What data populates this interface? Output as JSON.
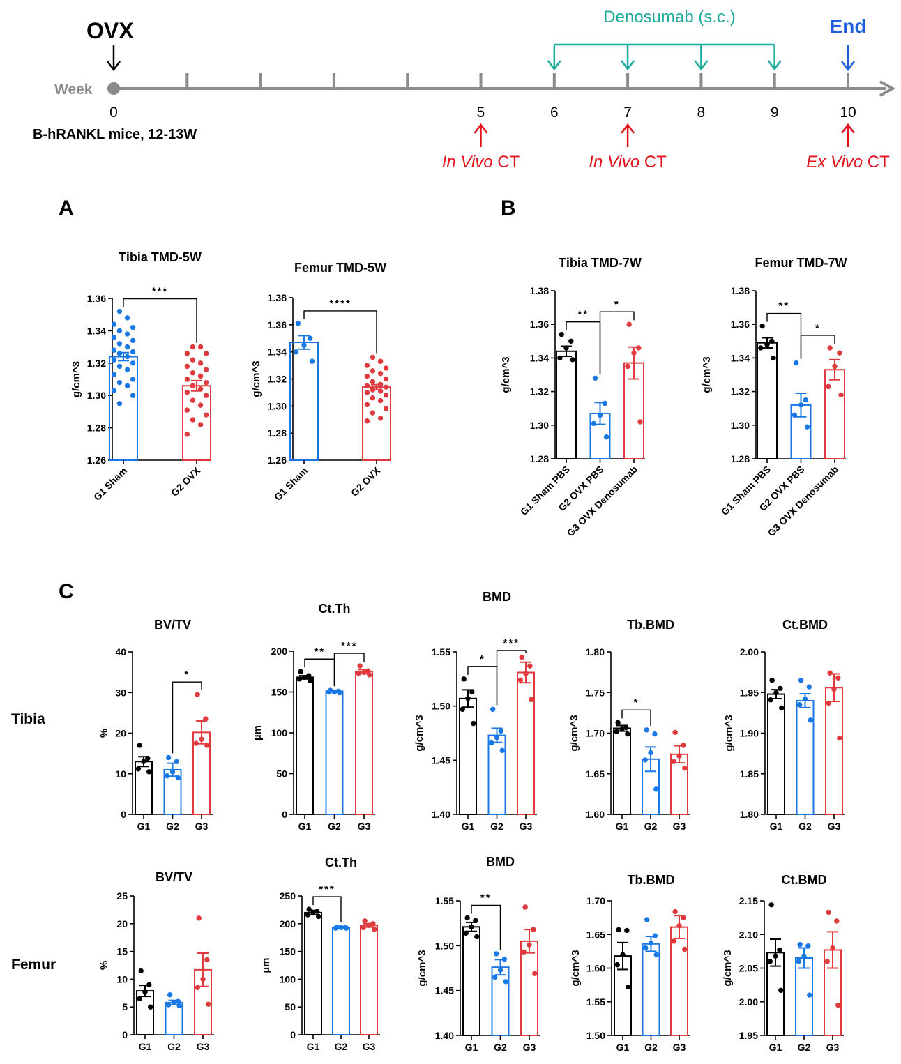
{
  "timeline": {
    "week_label": "Week",
    "ovx_label": "OVX",
    "end_label": "End",
    "treatment_label": "Denosumab (s.c.)",
    "mice_label": "B-hRANKL mice, 12-13W",
    "week_numbers": [
      "0",
      "5",
      "6",
      "7",
      "8",
      "9",
      "10"
    ],
    "ct_events": [
      {
        "week": 5,
        "italic": "In Vivo",
        "text": "CT"
      },
      {
        "week": 7,
        "italic": "In Vivo",
        "text": "CT"
      },
      {
        "week": 10,
        "italic": "Ex Vivo",
        "text": "CT"
      }
    ],
    "treatment_weeks": [
      6,
      7,
      8,
      9
    ],
    "colors": {
      "axis": "#8c8c8c",
      "treatment": "#1aab9b",
      "end": "#1f5fd8",
      "ct": "#e3121b",
      "ovx": "#000000"
    }
  },
  "panel_letters": [
    "A",
    "B",
    "C"
  ],
  "row_labels": [
    "Tibia",
    "Femur"
  ],
  "group_colors": {
    "G1": "#000000",
    "G2": "#1a78e6",
    "G3": "#e03a3e"
  },
  "chart_data": [
    {
      "type": "bar",
      "title": "Tibia TMD-5W",
      "ylabel": "g/cm^3",
      "categories": [
        "G1 Sham",
        "G2 OVX"
      ],
      "category_colors": [
        "#1a78e6",
        "#e03a3e"
      ],
      "values": [
        1.324,
        1.306
      ],
      "sem": [
        0.0025,
        0.0032
      ],
      "ylim": [
        1.26,
        1.36
      ],
      "yticks": [
        "1.26",
        "1.28",
        "1.30",
        "1.32",
        "1.34",
        "1.36"
      ],
      "points": [
        [
          1.352,
          1.348,
          1.344,
          1.342,
          1.34,
          1.338,
          1.336,
          1.334,
          1.332,
          1.33,
          1.328,
          1.327,
          1.326,
          1.324,
          1.322,
          1.32,
          1.318,
          1.316,
          1.313,
          1.31,
          1.308,
          1.306,
          1.303,
          1.3,
          1.295
        ],
        [
          1.33,
          1.33,
          1.326,
          1.326,
          1.322,
          1.32,
          1.318,
          1.316,
          1.314,
          1.312,
          1.31,
          1.308,
          1.306,
          1.304,
          1.302,
          1.3,
          1.297,
          1.294,
          1.291,
          1.288,
          1.285,
          1.282,
          1.276
        ]
      ],
      "significance": [
        {
          "from": 0,
          "to": 1,
          "label": "***"
        }
      ]
    },
    {
      "type": "bar",
      "title": "Femur TMD-5W",
      "ylabel": "g/cm^3",
      "categories": [
        "G1 Sham",
        "G2 OVX"
      ],
      "category_colors": [
        "#1a78e6",
        "#e03a3e"
      ],
      "values": [
        1.347,
        1.314
      ],
      "sem": [
        0.005,
        0.0018
      ],
      "ylim": [
        1.26,
        1.38
      ],
      "yticks": [
        "1.26",
        "1.28",
        "1.30",
        "1.32",
        "1.34",
        "1.36",
        "1.38"
      ],
      "points": [
        [
          1.361,
          1.35,
          1.345,
          1.34,
          1.333
        ],
        [
          1.336,
          1.333,
          1.33,
          1.328,
          1.326,
          1.324,
          1.322,
          1.32,
          1.318,
          1.316,
          1.315,
          1.314,
          1.312,
          1.311,
          1.31,
          1.308,
          1.306,
          1.304,
          1.301,
          1.298,
          1.295,
          1.291,
          1.289
        ]
      ],
      "significance": [
        {
          "from": 0,
          "to": 1,
          "label": "****"
        }
      ]
    },
    {
      "type": "bar",
      "title": "Tibia TMD-7W",
      "ylabel": "g/cm^3",
      "categories": [
        "G1 Sham PBS",
        "G2 OVX PBS",
        "G3 OVX Denosumab"
      ],
      "category_colors": [
        "#000000",
        "#1a78e6",
        "#e03a3e"
      ],
      "values": [
        1.344,
        1.307,
        1.337
      ],
      "sem": [
        0.003,
        0.0065,
        0.0095
      ],
      "ylim": [
        1.28,
        1.38
      ],
      "yticks": [
        "1.28",
        "1.30",
        "1.32",
        "1.34",
        "1.36",
        "1.38"
      ],
      "points": [
        [
          1.354,
          1.35,
          1.346,
          1.34,
          1.339
        ],
        [
          1.328,
          1.313,
          1.306,
          1.301,
          1.293
        ],
        [
          1.36,
          1.346,
          1.343,
          1.335,
          1.302
        ]
      ],
      "significance": [
        {
          "from": 0,
          "to": 1,
          "label": "**"
        },
        {
          "from": 1,
          "to": 2,
          "label": "*"
        }
      ]
    },
    {
      "type": "bar",
      "title": "Femur TMD-7W",
      "ylabel": "g/cm^3",
      "categories": [
        "G1 Sham PBS",
        "G2 OVX PBS",
        "G3 OVX Denosumab"
      ],
      "category_colors": [
        "#000000",
        "#1a78e6",
        "#e03a3e"
      ],
      "values": [
        1.349,
        1.312,
        1.333
      ],
      "sem": [
        0.003,
        0.007,
        0.006
      ],
      "ylim": [
        1.28,
        1.38
      ],
      "yticks": [
        "1.28",
        "1.30",
        "1.32",
        "1.34",
        "1.36",
        "1.38"
      ],
      "points": [
        [
          1.359,
          1.35,
          1.348,
          1.346,
          1.34
        ],
        [
          1.337,
          1.315,
          1.312,
          1.306,
          1.299
        ],
        [
          1.346,
          1.343,
          1.335,
          1.323,
          1.318
        ]
      ],
      "significance": [
        {
          "from": 0,
          "to": 1,
          "label": "**"
        },
        {
          "from": 1,
          "to": 2,
          "label": "*"
        }
      ]
    },
    {
      "type": "bar",
      "title": "BV/TV",
      "ylabel": "%",
      "categories": [
        "G1",
        "G2",
        "G3"
      ],
      "category_colors": [
        "#000000",
        "#1a78e6",
        "#e03a3e"
      ],
      "values": [
        13.0,
        11.0,
        20.2
      ],
      "sem": [
        1.2,
        1.6,
        2.8
      ],
      "ylim": [
        0,
        40
      ],
      "yticks": [
        "0",
        "10",
        "20",
        "30",
        "40"
      ],
      "points": [
        [
          17.0,
          13.8,
          13.0,
          11.2,
          10.5
        ],
        [
          14.0,
          13.0,
          10.5,
          9.5,
          9.0
        ],
        [
          29.5,
          23.5,
          18.5,
          17.5,
          17.0
        ]
      ],
      "significance": [
        {
          "from": 1,
          "to": 2,
          "label": "*"
        }
      ]
    },
    {
      "type": "bar",
      "title": "Ct.Th",
      "ylabel": "µm",
      "categories": [
        "G1",
        "G2",
        "G3"
      ],
      "category_colors": [
        "#000000",
        "#1a78e6",
        "#e03a3e"
      ],
      "values": [
        168,
        151,
        175
      ],
      "sem": [
        2,
        1,
        2.5
      ],
      "ylim": [
        0,
        200
      ],
      "yticks": [
        "0",
        "50",
        "100",
        "150",
        "200"
      ],
      "points": [
        [
          175,
          170,
          168,
          166,
          164
        ],
        [
          152,
          151,
          150,
          150,
          149
        ],
        [
          182,
          176,
          174,
          173,
          171
        ]
      ],
      "significance": [
        {
          "from": 0,
          "to": 1,
          "label": "**"
        },
        {
          "from": 1,
          "to": 2,
          "label": "***"
        }
      ]
    },
    {
      "type": "bar",
      "title": "BMD",
      "ylabel": "g/cm^3",
      "categories": [
        "G1",
        "G2",
        "G3"
      ],
      "category_colors": [
        "#000000",
        "#1a78e6",
        "#e03a3e"
      ],
      "values": [
        1.507,
        1.473,
        1.531
      ],
      "sem": [
        0.008,
        0.0065,
        0.0095
      ],
      "ylim": [
        1.4,
        1.55
      ],
      "yticks": [
        "1.40",
        "1.45",
        "1.50",
        "1.55"
      ],
      "points": [
        [
          1.525,
          1.513,
          1.507,
          1.497,
          1.484
        ],
        [
          1.497,
          1.477,
          1.471,
          1.466,
          1.459
        ],
        [
          1.545,
          1.537,
          1.53,
          1.524,
          1.506
        ]
      ],
      "significance": [
        {
          "from": 0,
          "to": 1,
          "label": "*"
        },
        {
          "from": 1,
          "to": 2,
          "label": "***"
        }
      ]
    },
    {
      "type": "bar",
      "title": "Tb.BMD",
      "ylabel": "g/cm^3",
      "categories": [
        "G1",
        "G2",
        "G3"
      ],
      "category_colors": [
        "#000000",
        "#1a78e6",
        "#e03a3e"
      ],
      "values": [
        1.706,
        1.668,
        1.674
      ],
      "sem": [
        0.0035,
        0.015,
        0.0105
      ],
      "ylim": [
        1.6,
        1.8
      ],
      "yticks": [
        "1.60",
        "1.65",
        "1.70",
        "1.75",
        "1.80"
      ],
      "points": [
        [
          1.713,
          1.707,
          1.705,
          1.702,
          1.699
        ],
        [
          1.704,
          1.699,
          1.676,
          1.667,
          1.631
        ],
        [
          1.701,
          1.685,
          1.672,
          1.665,
          1.657
        ]
      ],
      "significance": [
        {
          "from": 0,
          "to": 1,
          "label": "*"
        }
      ]
    },
    {
      "type": "bar",
      "title": "Ct.BMD",
      "ylabel": "g/cm^3",
      "categories": [
        "G1",
        "G2",
        "G3"
      ],
      "category_colors": [
        "#000000",
        "#1a78e6",
        "#e03a3e"
      ],
      "values": [
        1.948,
        1.94,
        1.956
      ],
      "sem": [
        0.0055,
        0.0085,
        0.017
      ],
      "ylim": [
        1.8,
        2.0
      ],
      "yticks": [
        "1.80",
        "1.85",
        "1.90",
        "1.95",
        "2.00"
      ],
      "points": [
        [
          1.965,
          1.955,
          1.95,
          1.941,
          1.931
        ],
        [
          1.965,
          1.957,
          1.942,
          1.935,
          1.916
        ],
        [
          1.974,
          1.968,
          1.954,
          1.937,
          1.894
        ]
      ],
      "significance": []
    },
    {
      "type": "bar",
      "title": "BV/TV",
      "ylabel": "%",
      "categories": [
        "G1",
        "G2",
        "G3"
      ],
      "category_colors": [
        "#000000",
        "#1a78e6",
        "#e03a3e"
      ],
      "values": [
        7.9,
        5.8,
        11.7
      ],
      "sem": [
        1.0,
        0.4,
        3.0
      ],
      "ylim": [
        0,
        25
      ],
      "yticks": [
        "0",
        "5",
        "10",
        "15",
        "20",
        "25"
      ],
      "points": [
        [
          11.5,
          9.0,
          7.7,
          6.5,
          5.0
        ],
        [
          7.2,
          6.0,
          5.8,
          5.4,
          5.2
        ],
        [
          21.0,
          13.5,
          10.0,
          8.5,
          5.5
        ]
      ],
      "significance": []
    },
    {
      "type": "bar",
      "title": "Ct.Th",
      "ylabel": "µm",
      "categories": [
        "G1",
        "G2",
        "G3"
      ],
      "category_colors": [
        "#000000",
        "#1a78e6",
        "#e03a3e"
      ],
      "values": [
        220,
        193,
        197
      ],
      "sem": [
        4,
        1.5,
        3
      ],
      "ylim": [
        0,
        250
      ],
      "yticks": [
        "0",
        "50",
        "100",
        "150",
        "200",
        "250"
      ],
      "points": [
        [
          226,
          222,
          220,
          216,
          213
        ],
        [
          194,
          193,
          193,
          192,
          192
        ],
        [
          205,
          200,
          197,
          193,
          190
        ]
      ],
      "significance": [
        {
          "from": 0,
          "to": 1,
          "label": "***"
        }
      ]
    },
    {
      "type": "bar",
      "title": "BMD",
      "ylabel": "g/cm^3",
      "categories": [
        "G1",
        "G2",
        "G3"
      ],
      "category_colors": [
        "#000000",
        "#1a78e6",
        "#e03a3e"
      ],
      "values": [
        1.521,
        1.476,
        1.505
      ],
      "sem": [
        0.005,
        0.0085,
        0.013
      ],
      "ylim": [
        1.4,
        1.55
      ],
      "yticks": [
        "1.40",
        "1.45",
        "1.50",
        "1.55"
      ],
      "points": [
        [
          1.531,
          1.528,
          1.521,
          1.514,
          1.51
        ],
        [
          1.491,
          1.485,
          1.473,
          1.465,
          1.46
        ],
        [
          1.543,
          1.518,
          1.501,
          1.493,
          1.469
        ]
      ],
      "significance": [
        {
          "from": 0,
          "to": 1,
          "label": "**"
        }
      ]
    },
    {
      "type": "bar",
      "title": "Tb.BMD",
      "ylabel": "g/cm^3",
      "categories": [
        "G1",
        "G2",
        "G3"
      ],
      "category_colors": [
        "#000000",
        "#1a78e6",
        "#e03a3e"
      ],
      "values": [
        1.618,
        1.636,
        1.661
      ],
      "sem": [
        0.02,
        0.011,
        0.017
      ],
      "ylim": [
        1.5,
        1.7
      ],
      "yticks": [
        "1.50",
        "1.55",
        "1.60",
        "1.65",
        "1.70"
      ],
      "points": [
        [
          1.657,
          1.656,
          1.62,
          1.605,
          1.572
        ],
        [
          1.672,
          1.648,
          1.637,
          1.63,
          1.62
        ],
        [
          1.684,
          1.675,
          1.663,
          1.64,
          1.628
        ]
      ],
      "significance": []
    },
    {
      "type": "bar",
      "title": "Ct.BMD",
      "ylabel": "g/cm^3",
      "categories": [
        "G1",
        "G2",
        "G3"
      ],
      "category_colors": [
        "#000000",
        "#1a78e6",
        "#e03a3e"
      ],
      "values": [
        2.073,
        2.065,
        2.077
      ],
      "sem": [
        0.02,
        0.015,
        0.027
      ],
      "ylim": [
        1.95,
        2.15
      ],
      "yticks": [
        "1.95",
        "2.00",
        "2.05",
        "2.10",
        "2.15"
      ],
      "points": [
        [
          2.144,
          2.077,
          2.068,
          2.06,
          2.017
        ],
        [
          2.085,
          2.083,
          2.068,
          2.06,
          2.01
        ],
        [
          2.133,
          2.12,
          2.08,
          2.06,
          1.995
        ]
      ],
      "significance": []
    }
  ]
}
